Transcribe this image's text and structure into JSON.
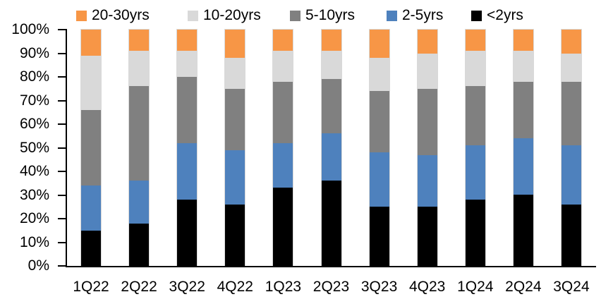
{
  "chart_data": {
    "type": "bar",
    "subtype": "stacked-100-percent",
    "title": "",
    "xlabel": "",
    "ylabel": "",
    "gridlines": false,
    "legend_position": "top",
    "legend_order": [
      "20-30yrs",
      "10-20yrs",
      "5-10yrs",
      "2-5yrs",
      "<2yrs"
    ],
    "categories": [
      "1Q22",
      "2Q22",
      "3Q22",
      "4Q22",
      "1Q23",
      "2Q23",
      "3Q23",
      "4Q23",
      "1Q24",
      "2Q24",
      "3Q24"
    ],
    "series": [
      {
        "name": "<2yrs",
        "color": "#000000",
        "values": [
          15,
          18,
          28,
          26,
          33,
          36,
          25,
          25,
          28,
          30,
          26
        ]
      },
      {
        "name": "2-5yrs",
        "color": "#4E81BD",
        "values": [
          19,
          18,
          24,
          23,
          19,
          20,
          23,
          22,
          23,
          24,
          25
        ]
      },
      {
        "name": "5-10yrs",
        "color": "#808080",
        "values": [
          32,
          40,
          28,
          26,
          26,
          23,
          26,
          28,
          25,
          24,
          27
        ]
      },
      {
        "name": "10-20yrs",
        "color": "#D9D9D9",
        "values": [
          23,
          15,
          11,
          13,
          13,
          12,
          14,
          15,
          15,
          13,
          12
        ]
      },
      {
        "name": "20-30yrs",
        "color": "#F79646",
        "values": [
          11,
          9,
          9,
          12,
          9,
          9,
          12,
          10,
          9,
          9,
          10
        ]
      }
    ],
    "y_axis": {
      "min": 0,
      "max": 100,
      "step": 10,
      "format": "percent",
      "tick_labels": [
        "0%",
        "10%",
        "20%",
        "30%",
        "40%",
        "50%",
        "60%",
        "70%",
        "80%",
        "90%",
        "100%"
      ]
    }
  },
  "colors": {
    "axis": "#000000",
    "background": "#ffffff",
    "bar_outline": "#d9d9d9"
  }
}
